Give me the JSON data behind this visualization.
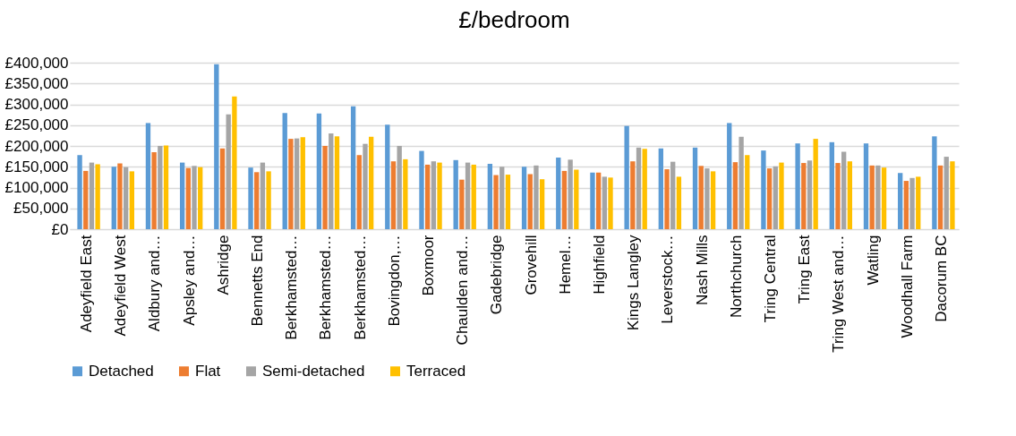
{
  "chart_data": {
    "type": "bar",
    "title": "£/bedroom",
    "categories": [
      "Adeyfield East",
      "Adeyfield West",
      "Aldbury and…",
      "Apsley and…",
      "Ashridge",
      "Bennetts End",
      "Berkhamsted…",
      "Berkhamsted…",
      "Berkhamsted…",
      "Bovingdon,…",
      "Boxmoor",
      "Chaulden and…",
      "Gadebridge",
      "Grovehill",
      "Hemel…",
      "Highfield",
      "Kings Langley",
      "Leverstock…",
      "Nash Mills",
      "Northchurch",
      "Tring Central",
      "Tring East",
      "Tring West and…",
      "Watling",
      "Woodhall Farm",
      "Dacorum BC"
    ],
    "series": [
      {
        "name": "Detached",
        "color": "#5b9bd5",
        "values": [
          178000,
          150000,
          255000,
          160000,
          396000,
          148000,
          279000,
          278000,
          295000,
          251000,
          188000,
          166000,
          157000,
          150000,
          172000,
          136000,
          248000,
          194000,
          196000,
          255000,
          189000,
          206000,
          209000,
          206000,
          135000,
          223000
        ]
      },
      {
        "name": "Flat",
        "color": "#ed7d31",
        "values": [
          140000,
          158000,
          185000,
          147000,
          194000,
          137000,
          217000,
          200000,
          178000,
          163000,
          155000,
          119000,
          130000,
          132000,
          140000,
          136000,
          163000,
          144000,
          152000,
          161000,
          146000,
          159000,
          159000,
          153000,
          116000,
          153000
        ]
      },
      {
        "name": "Semi-detached",
        "color": "#a5a5a5",
        "values": [
          160000,
          149000,
          200000,
          152000,
          276000,
          160000,
          218000,
          230000,
          205000,
          200000,
          163000,
          160000,
          150000,
          153000,
          167000,
          126000,
          196000,
          162000,
          146000,
          222000,
          151000,
          165000,
          186000,
          153000,
          123000,
          174000
        ]
      },
      {
        "name": "Terraced",
        "color": "#ffc000",
        "values": [
          156000,
          139000,
          201000,
          149000,
          319000,
          139000,
          221000,
          223000,
          222000,
          168000,
          160000,
          155000,
          131000,
          120000,
          143000,
          124000,
          193000,
          126000,
          139000,
          178000,
          160000,
          217000,
          163000,
          148000,
          126000,
          163000
        ]
      }
    ],
    "ylim": [
      0,
      400000
    ],
    "yticks": [
      {
        "value": 0,
        "label": "£0"
      },
      {
        "value": 50000,
        "label": "£50,000"
      },
      {
        "value": 100000,
        "label": "£100,000"
      },
      {
        "value": 150000,
        "label": "£150,000"
      },
      {
        "value": 200000,
        "label": "£200,000"
      },
      {
        "value": 250000,
        "label": "£250,000"
      },
      {
        "value": 300000,
        "label": "£300,000"
      },
      {
        "value": 350000,
        "label": "£350,000"
      },
      {
        "value": 400000,
        "label": "£400,000"
      }
    ],
    "grid": "y",
    "legend": "bottom"
  }
}
